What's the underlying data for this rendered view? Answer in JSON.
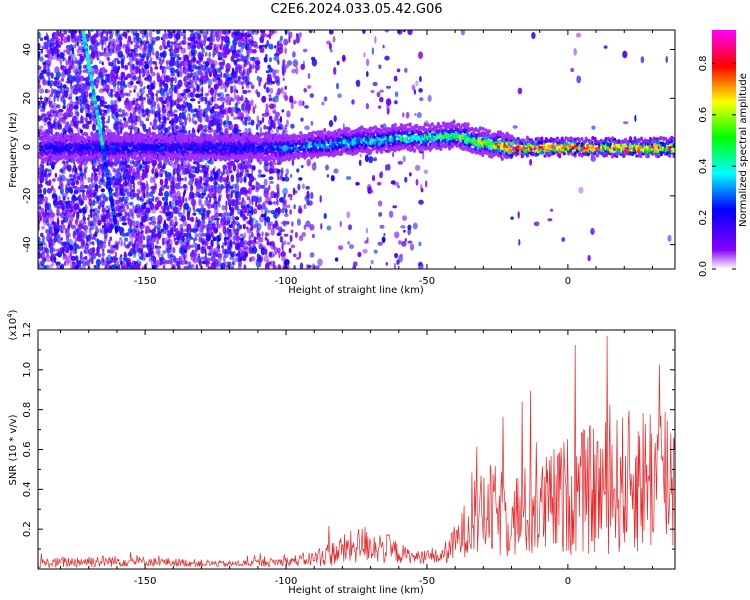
{
  "title": "C2E6.2024.033.05.42.G06",
  "chart_data": [
    {
      "type": "heatmap",
      "xlabel": "Height of straight line (km)",
      "ylabel": "Frequency (Hz)",
      "xlim": [
        -188,
        38
      ],
      "ylim": [
        -50,
        48
      ],
      "xticks": [
        -150,
        -100,
        -50,
        0
      ],
      "yticks": [
        -40,
        -20,
        0,
        20,
        40
      ],
      "colorbar": {
        "label": "Normalized spectral amplitude",
        "range": [
          0.0,
          0.93
        ],
        "ticks": [
          0.0,
          0.2,
          0.4,
          0.6,
          0.8
        ],
        "colormap": [
          "#ffffff",
          "#8800ff",
          "#0000ff",
          "#00ffff",
          "#00ff00",
          "#ffff00",
          "#ff0000",
          "#ff00ff"
        ]
      },
      "ridge": [
        {
          "x": -185,
          "y": 0,
          "amp": 0.25
        },
        {
          "x": -112,
          "y": 0,
          "amp": 0.25
        },
        {
          "x": -100,
          "y": 0,
          "amp": 0.3
        },
        {
          "x": -90,
          "y": 1,
          "amp": 0.35
        },
        {
          "x": -80,
          "y": 2,
          "amp": 0.38
        },
        {
          "x": -70,
          "y": 3,
          "amp": 0.4
        },
        {
          "x": -60,
          "y": 4,
          "amp": 0.42
        },
        {
          "x": -50,
          "y": 4,
          "amp": 0.5
        },
        {
          "x": -40,
          "y": 5,
          "amp": 0.55
        },
        {
          "x": -30,
          "y": 2,
          "amp": 0.6
        },
        {
          "x": -20,
          "y": 0,
          "amp": 0.85
        },
        {
          "x": -10,
          "y": 0,
          "amp": 0.88
        },
        {
          "x": 0,
          "y": 0,
          "amp": 0.88
        },
        {
          "x": 10,
          "y": 0,
          "amp": 0.85
        },
        {
          "x": 20,
          "y": 0,
          "amp": 0.88
        },
        {
          "x": 30,
          "y": 0,
          "amp": 0.85
        },
        {
          "x": 37,
          "y": 0,
          "amp": 0.8
        }
      ],
      "diagonal_streak": [
        {
          "x": -172,
          "y": 48
        },
        {
          "x": -165,
          "y": 0
        },
        {
          "x": -160,
          "y": -35
        }
      ]
    },
    {
      "type": "line",
      "xlabel": "Height of straight line (km)",
      "ylabel": "SNR (10 * v/v)",
      "yunit_multiplier": "(x10",
      "yunit_exponent": "4",
      "yunit_close": ")",
      "xlim": [
        -188,
        38
      ],
      "ylim": [
        0,
        1.2
      ],
      "xticks": [
        -150,
        -100,
        -50,
        0
      ],
      "yticks": [
        0.2,
        0.4,
        0.6,
        0.8,
        1.0,
        1.2
      ],
      "color": "#e8282a",
      "envelope": [
        {
          "x": -188,
          "base": 0.02,
          "amp": 0.03
        },
        {
          "x": -170,
          "base": 0.03,
          "amp": 0.04
        },
        {
          "x": -150,
          "base": 0.03,
          "amp": 0.03
        },
        {
          "x": -120,
          "base": 0.02,
          "amp": 0.02
        },
        {
          "x": -100,
          "base": 0.03,
          "amp": 0.03
        },
        {
          "x": -90,
          "base": 0.04,
          "amp": 0.05
        },
        {
          "x": -80,
          "base": 0.07,
          "amp": 0.1
        },
        {
          "x": -72,
          "base": 0.1,
          "amp": 0.12
        },
        {
          "x": -65,
          "base": 0.08,
          "amp": 0.1
        },
        {
          "x": -55,
          "base": 0.05,
          "amp": 0.04
        },
        {
          "x": -45,
          "base": 0.05,
          "amp": 0.05
        },
        {
          "x": -40,
          "base": 0.1,
          "amp": 0.12
        },
        {
          "x": -35,
          "base": 0.18,
          "amp": 0.2
        },
        {
          "x": -28,
          "base": 0.22,
          "amp": 0.3
        },
        {
          "x": -20,
          "base": 0.2,
          "amp": 0.28
        },
        {
          "x": -10,
          "base": 0.22,
          "amp": 0.32
        },
        {
          "x": 0,
          "base": 0.28,
          "amp": 0.38
        },
        {
          "x": 10,
          "base": 0.3,
          "amp": 0.42
        },
        {
          "x": 20,
          "base": 0.32,
          "amp": 0.45
        },
        {
          "x": 30,
          "base": 0.35,
          "amp": 0.5
        },
        {
          "x": 38,
          "base": 0.35,
          "amp": 0.55
        }
      ]
    }
  ]
}
